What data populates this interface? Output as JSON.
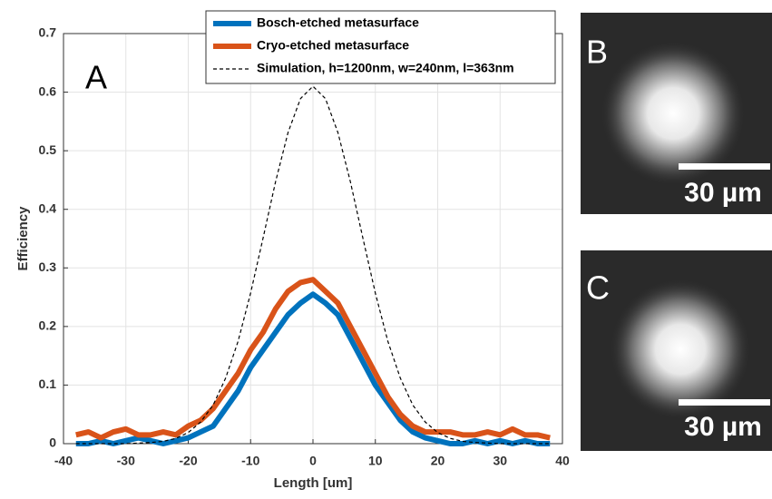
{
  "chart_data": {
    "type": "line",
    "panel_label": "A",
    "xlabel": "Length [um]",
    "ylabel": "Efficiency",
    "x": [
      -38,
      -36,
      -34,
      -32,
      -30,
      -28,
      -26,
      -24,
      -22,
      -20,
      -18,
      -16,
      -14,
      -12,
      -10,
      -8,
      -6,
      -4,
      -2,
      0,
      2,
      4,
      6,
      8,
      10,
      12,
      14,
      16,
      18,
      20,
      22,
      24,
      26,
      28,
      30,
      32,
      34,
      36,
      38
    ],
    "series": [
      {
        "name": "Bosch-etched metasurface",
        "color": "#0072bd",
        "linestyle": "solid",
        "values": [
          0.0,
          0.0,
          0.005,
          0.0,
          0.005,
          0.01,
          0.005,
          0.0,
          0.005,
          0.01,
          0.02,
          0.03,
          0.06,
          0.09,
          0.13,
          0.16,
          0.19,
          0.22,
          0.24,
          0.255,
          0.24,
          0.22,
          0.18,
          0.14,
          0.1,
          0.07,
          0.04,
          0.02,
          0.01,
          0.005,
          0.0,
          0.0,
          0.005,
          0.0,
          0.005,
          0.0,
          0.005,
          0.0,
          0.0
        ]
      },
      {
        "name": "Cryo-etched metasurface",
        "color": "#d95319",
        "linestyle": "solid",
        "values": [
          0.015,
          0.02,
          0.01,
          0.02,
          0.025,
          0.015,
          0.015,
          0.02,
          0.015,
          0.03,
          0.04,
          0.06,
          0.09,
          0.12,
          0.16,
          0.19,
          0.23,
          0.26,
          0.275,
          0.28,
          0.26,
          0.24,
          0.2,
          0.16,
          0.12,
          0.08,
          0.05,
          0.03,
          0.02,
          0.02,
          0.02,
          0.015,
          0.015,
          0.02,
          0.015,
          0.025,
          0.015,
          0.015,
          0.01
        ]
      },
      {
        "name": "Simulation, h=1200nm, w=240nm, l=363nm",
        "color": "#000000",
        "linestyle": "dashed",
        "values": [
          0,
          0,
          0,
          0,
          0,
          0.001,
          0.002,
          0.004,
          0.009,
          0.019,
          0.037,
          0.066,
          0.112,
          0.175,
          0.257,
          0.351,
          0.447,
          0.531,
          0.589,
          0.61,
          0.589,
          0.531,
          0.447,
          0.351,
          0.257,
          0.175,
          0.112,
          0.066,
          0.037,
          0.019,
          0.009,
          0.004,
          0.002,
          0.001,
          0,
          0,
          0,
          0,
          0
        ]
      }
    ],
    "xlim": [
      -40,
      40
    ],
    "xticks": [
      -40,
      -30,
      -20,
      -10,
      0,
      10,
      20,
      30,
      40
    ],
    "ylim": [
      0,
      0.7
    ],
    "yticks": [
      0,
      0.1,
      0.2,
      0.3,
      0.4,
      0.5,
      0.6,
      0.7
    ],
    "grid": true,
    "legend": "upper right"
  },
  "panels": [
    {
      "label": "B",
      "scale_bar": "30 µm"
    },
    {
      "label": "C",
      "scale_bar": "30 µm"
    }
  ]
}
